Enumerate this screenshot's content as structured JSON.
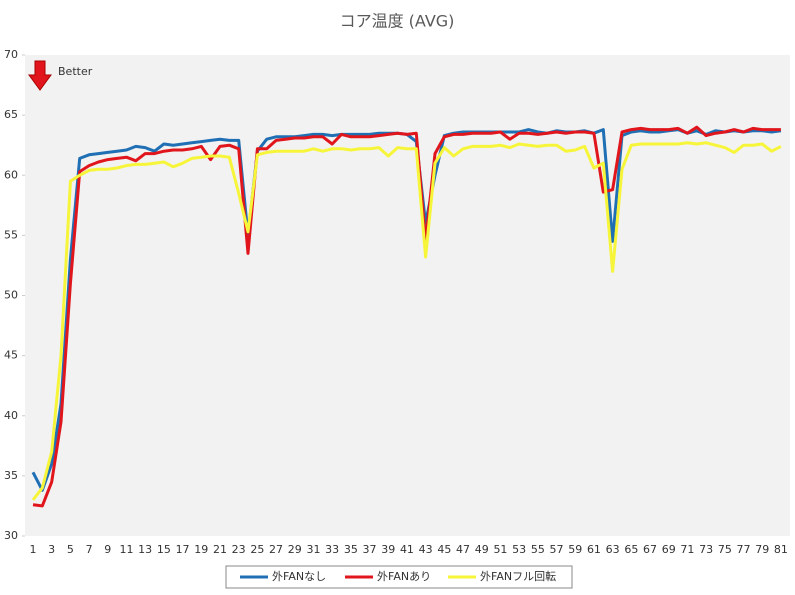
{
  "chart_data": {
    "type": "line",
    "title": "コア温度 (AVG)",
    "annotation": "Better",
    "categories": [
      "1",
      null,
      "3",
      null,
      "5",
      null,
      "7",
      null,
      "9",
      null,
      "11",
      null,
      "13",
      null,
      "15",
      null,
      "17",
      null,
      "19",
      null,
      "21",
      null,
      "23",
      null,
      "25",
      null,
      "27",
      null,
      "29",
      null,
      "31",
      null,
      "33",
      null,
      "35",
      null,
      "37",
      null,
      "39",
      null,
      "41",
      null,
      "43",
      null,
      "45",
      null,
      "47",
      null,
      "49",
      null,
      "51",
      null,
      "53",
      null,
      "55",
      null,
      "57",
      null,
      "59",
      null,
      "61",
      null,
      "63",
      null,
      "65",
      null,
      "67",
      null,
      "69",
      null,
      "71",
      null,
      "73",
      null,
      "75",
      null,
      "77",
      null,
      "79",
      null,
      "81"
    ],
    "series": [
      {
        "name": "外FANなし",
        "color": "#1f6fb4",
        "values": [
          35.3,
          33.8,
          36,
          41,
          53,
          61.4,
          61.7,
          61.8,
          61.9,
          62.0,
          62.1,
          62.4,
          62.3,
          62.0,
          62.6,
          62.5,
          62.6,
          62.7,
          62.8,
          62.9,
          63.0,
          62.9,
          62.9,
          55,
          62.0,
          63.0,
          63.2,
          63.2,
          63.2,
          63.3,
          63.4,
          63.4,
          63.3,
          63.4,
          63.4,
          63.4,
          63.4,
          63.5,
          63.5,
          63.5,
          63.4,
          62.8,
          56,
          60,
          63.3,
          63.5,
          63.6,
          63.6,
          63.6,
          63.6,
          63.6,
          63.6,
          63.6,
          63.8,
          63.6,
          63.5,
          63.7,
          63.6,
          63.6,
          63.7,
          63.5,
          63.8,
          54.5,
          63.3,
          63.6,
          63.7,
          63.6,
          63.6,
          63.7,
          63.8,
          63.5,
          63.7,
          63.4,
          63.7,
          63.6,
          63.7,
          63.6,
          63.7,
          63.7,
          63.6,
          63.7
        ]
      },
      {
        "name": "外FANあり",
        "color": "#e0161c",
        "values": [
          32.6,
          32.5,
          34.5,
          39.5,
          51,
          60.3,
          60.8,
          61.1,
          61.3,
          61.4,
          61.5,
          61.2,
          61.8,
          61.8,
          62.0,
          62.1,
          62.1,
          62.2,
          62.4,
          61.3,
          62.4,
          62.5,
          62.2,
          53.5,
          62.2,
          62.2,
          62.9,
          63.0,
          63.1,
          63.1,
          63.2,
          63.2,
          62.6,
          63.4,
          63.2,
          63.2,
          63.2,
          63.3,
          63.4,
          63.5,
          63.4,
          63.5,
          54.5,
          61.8,
          63.2,
          63.4,
          63.4,
          63.5,
          63.5,
          63.5,
          63.6,
          63.0,
          63.5,
          63.5,
          63.4,
          63.5,
          63.6,
          63.5,
          63.6,
          63.6,
          63.5,
          58.6,
          58.8,
          63.6,
          63.8,
          63.9,
          63.8,
          63.8,
          63.8,
          63.9,
          63.5,
          64.0,
          63.3,
          63.5,
          63.6,
          63.8,
          63.6,
          63.9,
          63.8,
          63.8,
          63.8
        ]
      },
      {
        "name": "外FANフル回転",
        "color": "#f7f53a",
        "values": [
          33.0,
          34.0,
          37,
          45,
          59.5,
          60.0,
          60.4,
          60.5,
          60.5,
          60.6,
          60.8,
          60.9,
          60.9,
          61.0,
          61.1,
          60.7,
          61.0,
          61.4,
          61.5,
          61.6,
          61.6,
          61.5,
          58.5,
          55.3,
          61.7,
          61.9,
          62.0,
          62.0,
          62.0,
          62.0,
          62.2,
          62.0,
          62.2,
          62.2,
          62.1,
          62.2,
          62.2,
          62.3,
          61.6,
          62.3,
          62.2,
          62.2,
          53.2,
          61.0,
          62.3,
          61.6,
          62.2,
          62.4,
          62.4,
          62.4,
          62.5,
          62.3,
          62.6,
          62.5,
          62.4,
          62.5,
          62.5,
          62.0,
          62.1,
          62.4,
          60.6,
          61.0,
          52.0,
          60.5,
          62.5,
          62.6,
          62.6,
          62.6,
          62.6,
          62.6,
          62.7,
          62.6,
          62.7,
          62.5,
          62.3,
          61.9,
          62.5,
          62.5,
          62.6,
          62.0,
          62.4
        ]
      }
    ],
    "ylim": [
      30,
      70
    ],
    "yticks": [
      30,
      35,
      40,
      45,
      50,
      55,
      60,
      65,
      70
    ],
    "grid": false,
    "legend": "bottom"
  }
}
